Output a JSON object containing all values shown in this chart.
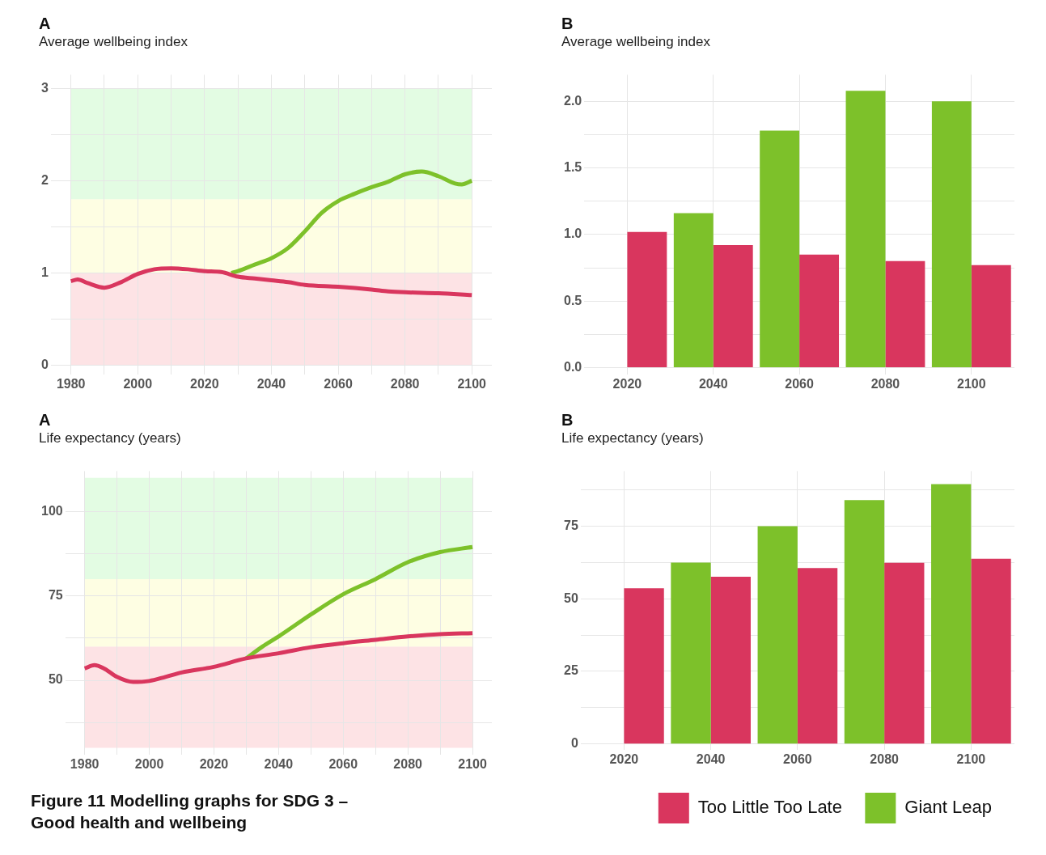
{
  "chart_data": [
    {
      "type": "line",
      "title": "A",
      "subtitle": "Average wellbeing index",
      "xlim": [
        1974,
        2106
      ],
      "xticks": [
        1980,
        {
          "value": 1990,
          "label": null
        },
        2000,
        {
          "value": 2010,
          "label": null
        },
        2020,
        {
          "value": 2030,
          "label": null
        },
        2040,
        {
          "value": 2050,
          "label": null
        },
        2060,
        {
          "value": 2070,
          "label": null
        },
        2080,
        {
          "value": 2090,
          "label": null
        },
        2100
      ],
      "ylim": [
        -0.1,
        3.15
      ],
      "yticks": [
        0,
        {
          "value": 0.5,
          "label": null
        },
        1,
        {
          "value": 1.5,
          "label": null
        },
        2,
        {
          "value": 2.5,
          "label": null
        },
        3
      ],
      "grid": true,
      "marker": "none",
      "bands": [
        {
          "axis": "y",
          "from": 0,
          "to": 1,
          "color": "#fde3e5"
        },
        {
          "axis": "y",
          "from": 1,
          "to": 1.8,
          "color": "#fefee3"
        },
        {
          "axis": "y",
          "from": 1.8,
          "to": 3,
          "color": "#e3fce3"
        }
      ],
      "series": [
        {
          "color": "#d9365e",
          "x": [
            1980,
            1982,
            1985,
            1990,
            1995,
            2000,
            2005,
            2010,
            2015,
            2020,
            2025,
            2030,
            2035,
            2040,
            2045,
            2050,
            2060,
            2070,
            2075,
            2080,
            2090,
            2100
          ],
          "values": [
            0.91,
            0.93,
            0.89,
            0.84,
            0.9,
            0.99,
            1.04,
            1.05,
            1.04,
            1.02,
            1.01,
            0.96,
            0.94,
            0.92,
            0.9,
            0.87,
            0.85,
            0.82,
            0.8,
            0.79,
            0.78,
            0.76
          ]
        },
        {
          "color": "#7dc12a",
          "x": [
            2028,
            2030,
            2035,
            2040,
            2045,
            2050,
            2055,
            2060,
            2065,
            2070,
            2075,
            2080,
            2085,
            2090,
            2095,
            2097,
            2100
          ],
          "values": [
            1.0,
            1.02,
            1.09,
            1.16,
            1.27,
            1.45,
            1.65,
            1.78,
            1.86,
            1.93,
            1.99,
            2.07,
            2.1,
            2.05,
            1.97,
            1.96,
            2.0
          ]
        }
      ]
    },
    {
      "type": "bar",
      "title": "B",
      "subtitle": "Average wellbeing index",
      "categories": [
        "2020",
        "2040",
        "2060",
        "2080",
        "2100"
      ],
      "ylim": [
        -0.05,
        2.2
      ],
      "yticks": [
        {
          "value": 0,
          "label": "0.0"
        },
        {
          "value": 0.25,
          "label": null
        },
        {
          "value": 0.5,
          "label": "0.5"
        },
        {
          "value": 0.75,
          "label": null
        },
        {
          "value": 1,
          "label": "1.0"
        },
        {
          "value": 1.25,
          "label": null
        },
        {
          "value": 1.5,
          "label": "1.5"
        },
        {
          "value": 1.75,
          "label": null
        },
        {
          "value": 2,
          "label": "2.0"
        }
      ],
      "grid": true,
      "series": [
        {
          "color": "#7dc12a",
          "values": [
            null,
            1.16,
            1.78,
            2.08,
            2.0
          ]
        },
        {
          "color": "#d9365e",
          "values": [
            1.02,
            0.92,
            0.85,
            0.8,
            0.77
          ]
        }
      ]
    },
    {
      "type": "line",
      "title": "A",
      "subtitle": "Life expectancy (years)",
      "xlim": [
        1974,
        2106
      ],
      "xticks": [
        1980,
        {
          "value": 1990,
          "label": null
        },
        2000,
        {
          "value": 2010,
          "label": null
        },
        2020,
        {
          "value": 2030,
          "label": null
        },
        2040,
        {
          "value": 2050,
          "label": null
        },
        2060,
        {
          "value": 2070,
          "label": null
        },
        2080,
        {
          "value": 2090,
          "label": null
        },
        2100
      ],
      "ylim": [
        28,
        112
      ],
      "yticks": [
        {
          "value": 37.5,
          "label": null
        },
        50,
        {
          "value": 62.5,
          "label": null
        },
        75,
        {
          "value": 87.5,
          "label": null
        },
        100
      ],
      "grid": true,
      "marker": "none",
      "annotations": [
        "Figure 11 Modelling graphs for SDG 3 – Good health and wellbeing"
      ],
      "bands": [
        {
          "axis": "y",
          "from": 30,
          "to": 60,
          "color": "#fde3e5"
        },
        {
          "axis": "y",
          "from": 60,
          "to": 80,
          "color": "#fefee3"
        },
        {
          "axis": "y",
          "from": 80,
          "to": 110,
          "color": "#e3fce3"
        }
      ],
      "series": [
        {
          "color": "#d9365e",
          "x": [
            1980,
            1983,
            1986,
            1990,
            1995,
            2000,
            2005,
            2010,
            2020,
            2030,
            2040,
            2050,
            2060,
            2070,
            2080,
            2090,
            2100
          ],
          "values": [
            53.5,
            54.5,
            53.5,
            51,
            49.5,
            49.8,
            51,
            52.3,
            54,
            56.5,
            58,
            59.8,
            61,
            62,
            63,
            63.7,
            64
          ]
        },
        {
          "color": "#7dc12a",
          "x": [
            2030,
            2035,
            2040,
            2050,
            2060,
            2070,
            2080,
            2090,
            2100
          ],
          "values": [
            56.5,
            60,
            63,
            69.5,
            75.5,
            80,
            85,
            88,
            89.5
          ]
        }
      ]
    },
    {
      "type": "bar",
      "title": "B",
      "subtitle": "Life expectancy (years)",
      "categories": [
        "2020",
        "2040",
        "2060",
        "2080",
        "2100"
      ],
      "ylim": [
        -2,
        94
      ],
      "yticks": [
        0,
        {
          "value": 12.5,
          "label": null
        },
        25,
        {
          "value": 37.5,
          "label": null
        },
        50,
        {
          "value": 62.5,
          "label": null
        },
        75,
        {
          "value": 87.5,
          "label": null
        }
      ],
      "grid": true,
      "legend": "bottom right",
      "series": [
        {
          "name": "Giant Leap",
          "color": "#7dc12a",
          "values": [
            null,
            62.5,
            75,
            84,
            89.5
          ]
        },
        {
          "name": "Too Little Too Late",
          "color": "#d9365e",
          "values": [
            53.6,
            57.6,
            60.6,
            62.4,
            63.8
          ]
        }
      ]
    }
  ]
}
